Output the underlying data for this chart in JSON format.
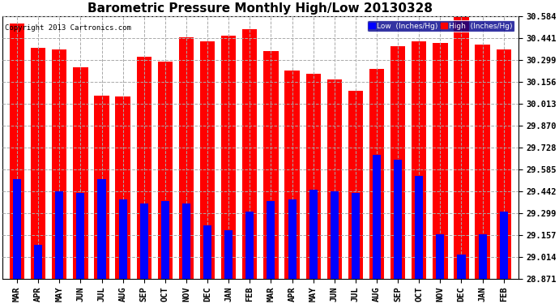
{
  "title": "Barometric Pressure Monthly High/Low 20130328",
  "copyright": "Copyright 2013 Cartronics.com",
  "legend_low": "Low  (Inches/Hg)",
  "legend_high": "High  (Inches/Hg)",
  "months": [
    "MAR",
    "APR",
    "MAY",
    "JUN",
    "JUL",
    "AUG",
    "SEP",
    "OCT",
    "NOV",
    "DEC",
    "JAN",
    "FEB",
    "MAR",
    "APR",
    "MAY",
    "JUN",
    "JUL",
    "AUG",
    "SEP",
    "OCT",
    "NOV",
    "DEC",
    "JAN",
    "FEB"
  ],
  "high_values": [
    30.54,
    30.38,
    30.37,
    30.25,
    30.065,
    30.06,
    30.32,
    30.29,
    30.45,
    30.42,
    30.46,
    30.5,
    30.36,
    30.23,
    30.21,
    30.17,
    30.1,
    30.24,
    30.39,
    30.42,
    30.41,
    30.59,
    30.4,
    30.37
  ],
  "low_values": [
    29.52,
    29.09,
    29.44,
    29.43,
    29.52,
    29.39,
    29.36,
    29.38,
    29.36,
    29.22,
    29.19,
    29.31,
    29.38,
    29.39,
    29.45,
    29.44,
    29.43,
    29.68,
    29.65,
    29.54,
    29.16,
    29.03,
    29.16,
    29.31
  ],
  "ymin": 28.871,
  "ymax": 30.584,
  "yticks": [
    28.871,
    29.014,
    29.157,
    29.299,
    29.442,
    29.585,
    29.728,
    29.87,
    30.013,
    30.156,
    30.299,
    30.441,
    30.584
  ],
  "bg_color": "#ffffff",
  "plot_bg_color": "#ffffff",
  "bar_width": 0.7,
  "high_color": "#ff0000",
  "low_color": "#0000ff",
  "grid_color": "#aaaaaa",
  "title_fontsize": 11,
  "tick_fontsize": 7.5,
  "copyright_fontsize": 6.5
}
